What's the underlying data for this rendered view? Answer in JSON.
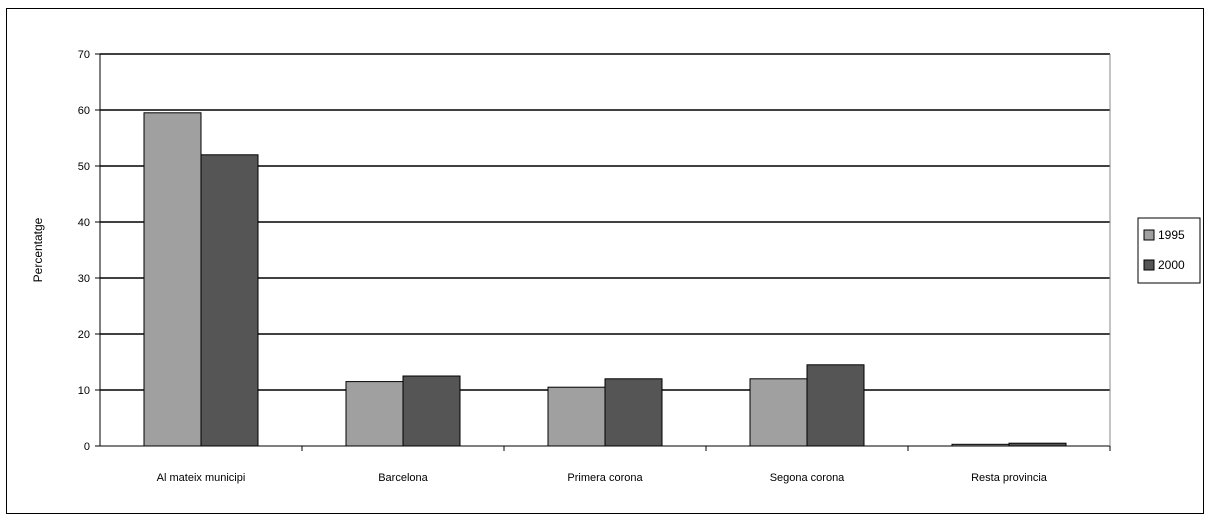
{
  "chart_data": {
    "type": "bar",
    "title": "",
    "xlabel": "",
    "ylabel": "Percentatge",
    "ylim": [
      0,
      70
    ],
    "yticks": [
      0,
      10,
      20,
      30,
      40,
      50,
      60,
      70
    ],
    "grid": true,
    "legend_position": "right",
    "categories": [
      "Al mateix municipi",
      "Barcelona",
      "Primera corona",
      "Segona corona",
      "Resta provincia"
    ],
    "series": [
      {
        "name": "1995",
        "color": "#a0a0a0",
        "values": [
          59.5,
          11.5,
          10.5,
          12.0,
          0.3
        ]
      },
      {
        "name": "2000",
        "color": "#555555",
        "values": [
          52.0,
          12.5,
          12.0,
          14.5,
          0.5
        ]
      }
    ]
  }
}
